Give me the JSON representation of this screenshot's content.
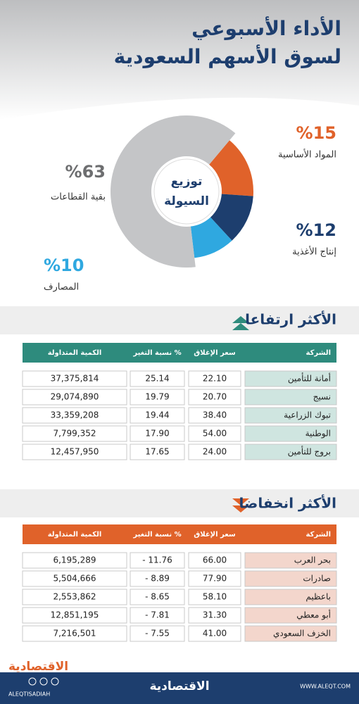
{
  "header": {
    "title_lines": [
      "الأداء الأسبوعي",
      "لسوق الأسهم السعودية"
    ]
  },
  "chart_data": {
    "type": "donut",
    "title_lines": [
      "توزيع",
      "السيولة"
    ],
    "categories": [
      "المواد الأساسية",
      "إنتاج الأغذية",
      "المصارف",
      "بقية القطاعات"
    ],
    "values": [
      15,
      12,
      10,
      63
    ],
    "value_labels": [
      "%15",
      "%12",
      "%10",
      "%63"
    ],
    "colors": [
      "#e0622a",
      "#1d3e6e",
      "#2fa8e0",
      "#c4c5c7"
    ]
  },
  "gainers": {
    "title": "الأكثر ارتفاعا",
    "columns": [
      "الشركة",
      "سعر الإغلاق",
      "نسبة التغير %",
      "الكمية المتداولة"
    ],
    "rows": [
      [
        "أمانة للتأمين",
        "22.10",
        "25.14",
        "37,375,814"
      ],
      [
        "نسيج",
        "20.70",
        "19.79",
        "29,074,890"
      ],
      [
        "تبوك الزراعية",
        "38.40",
        "19.44",
        "33,359,208"
      ],
      [
        "الوطنية",
        "54.00",
        "17.90",
        "7,799,352"
      ],
      [
        "بروج للتأمين",
        "24.00",
        "17.65",
        "12,457,950"
      ]
    ]
  },
  "losers": {
    "title": "الأكثر انخفاضا",
    "columns": [
      "الشركة",
      "سعر الإغلاق",
      "نسبة التغير %",
      "الكمية المتداولة"
    ],
    "rows": [
      [
        "بحر العرب",
        "66.00",
        "- 11.76",
        "6,195,289"
      ],
      [
        "صادرات",
        "77.90",
        "- 8.89",
        "5,504,666"
      ],
      [
        "باعظيم",
        "58.10",
        "- 8.65",
        "2,553,862"
      ],
      [
        "أبو معطي",
        "31.30",
        "- 7.81",
        "12,851,195"
      ],
      [
        "الخزف السعودي",
        "41.00",
        "- 7.55",
        "7,216,501"
      ]
    ]
  },
  "footer": {
    "logo": "الاقتصادية",
    "handle": "ALEQTISADIAH",
    "brand": "الاقتصادية",
    "website": "WWW.ALEQT.COM"
  }
}
